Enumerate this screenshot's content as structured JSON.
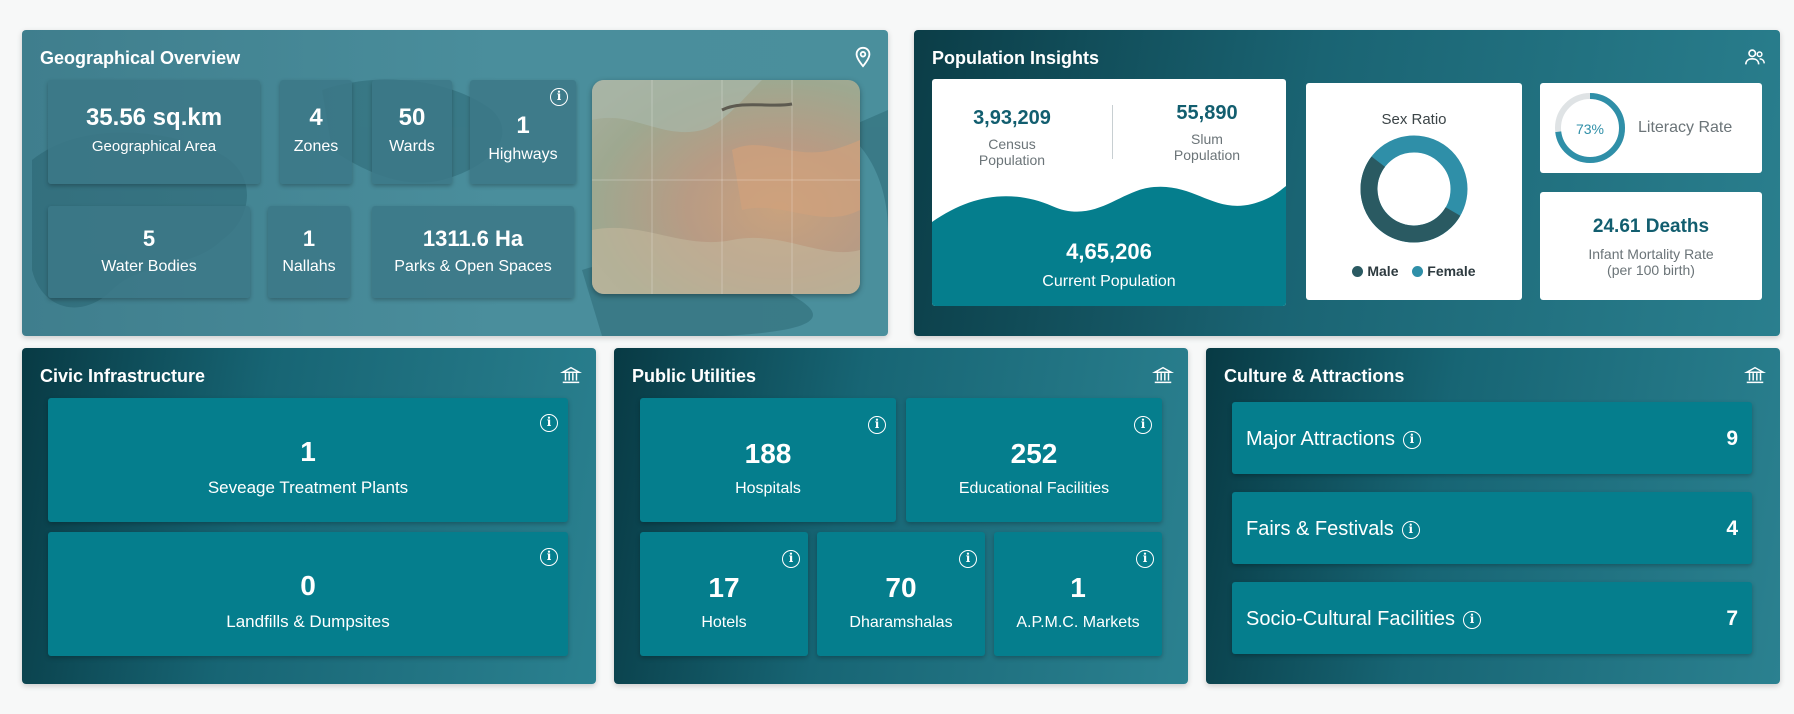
{
  "geo": {
    "title": "Geographical Overview",
    "icon": "map-pin-icon",
    "area": {
      "value": "35.56 sq.km",
      "label": "Geographical Area"
    },
    "zones": {
      "value": "4",
      "label": "Zones"
    },
    "wards": {
      "value": "50",
      "label": "Wards"
    },
    "highways": {
      "value": "1",
      "label": "Highways"
    },
    "water": {
      "value": "5",
      "label": "Water Bodies"
    },
    "nallahs": {
      "value": "1",
      "label": "Nallahs"
    },
    "parks": {
      "value": "1311.6 Ha",
      "label": "Parks & Open Spaces"
    }
  },
  "population": {
    "title": "Population Insights",
    "icon": "users-icon",
    "census": {
      "value": "3,93,209",
      "label_line1": "Census",
      "label_line2": "Population"
    },
    "slum": {
      "value": "55,890",
      "label_line1": "Slum",
      "label_line2": "Population"
    },
    "current": {
      "value": "4,65,206",
      "label": "Current Population"
    },
    "sex_ratio": {
      "title": "Sex Ratio",
      "male_label": "Male",
      "female_label": "Female",
      "male_fraction": 0.52
    },
    "literacy": {
      "percent": "73%",
      "label": "Literacy Rate",
      "fraction": 0.73
    },
    "infant": {
      "value": "24.61 Deaths",
      "label_line1": "Infant Mortality Rate",
      "label_line2": "(per 100 birth)"
    }
  },
  "civic": {
    "title": "Civic Infrastructure",
    "icon": "institution-icon",
    "stp": {
      "value": "1",
      "label": "Seveage Treatment Plants"
    },
    "landfills": {
      "value": "0",
      "label": "Landfills & Dumpsites"
    }
  },
  "utilities": {
    "title": "Public Utilities",
    "icon": "institution-icon",
    "hospitals": {
      "value": "188",
      "label": "Hospitals"
    },
    "education": {
      "value": "252",
      "label": "Educational Facilities"
    },
    "hotels": {
      "value": "17",
      "label": "Hotels"
    },
    "dharamshalas": {
      "value": "70",
      "label": "Dharamshalas"
    },
    "apmc": {
      "value": "1",
      "label": "A.P.M.C. Markets"
    }
  },
  "culture": {
    "title": "Culture & Attractions",
    "icon": "institution-icon",
    "items": [
      {
        "label": "Major Attractions",
        "count": "9"
      },
      {
        "label": "Fairs & Festivals",
        "count": "4"
      },
      {
        "label": "Socio-Cultural Facilities",
        "count": "7"
      }
    ]
  },
  "colors": {
    "teal": "#057e8d",
    "dark_teal": "#2a5a62",
    "accent": "#2f8fa8"
  }
}
